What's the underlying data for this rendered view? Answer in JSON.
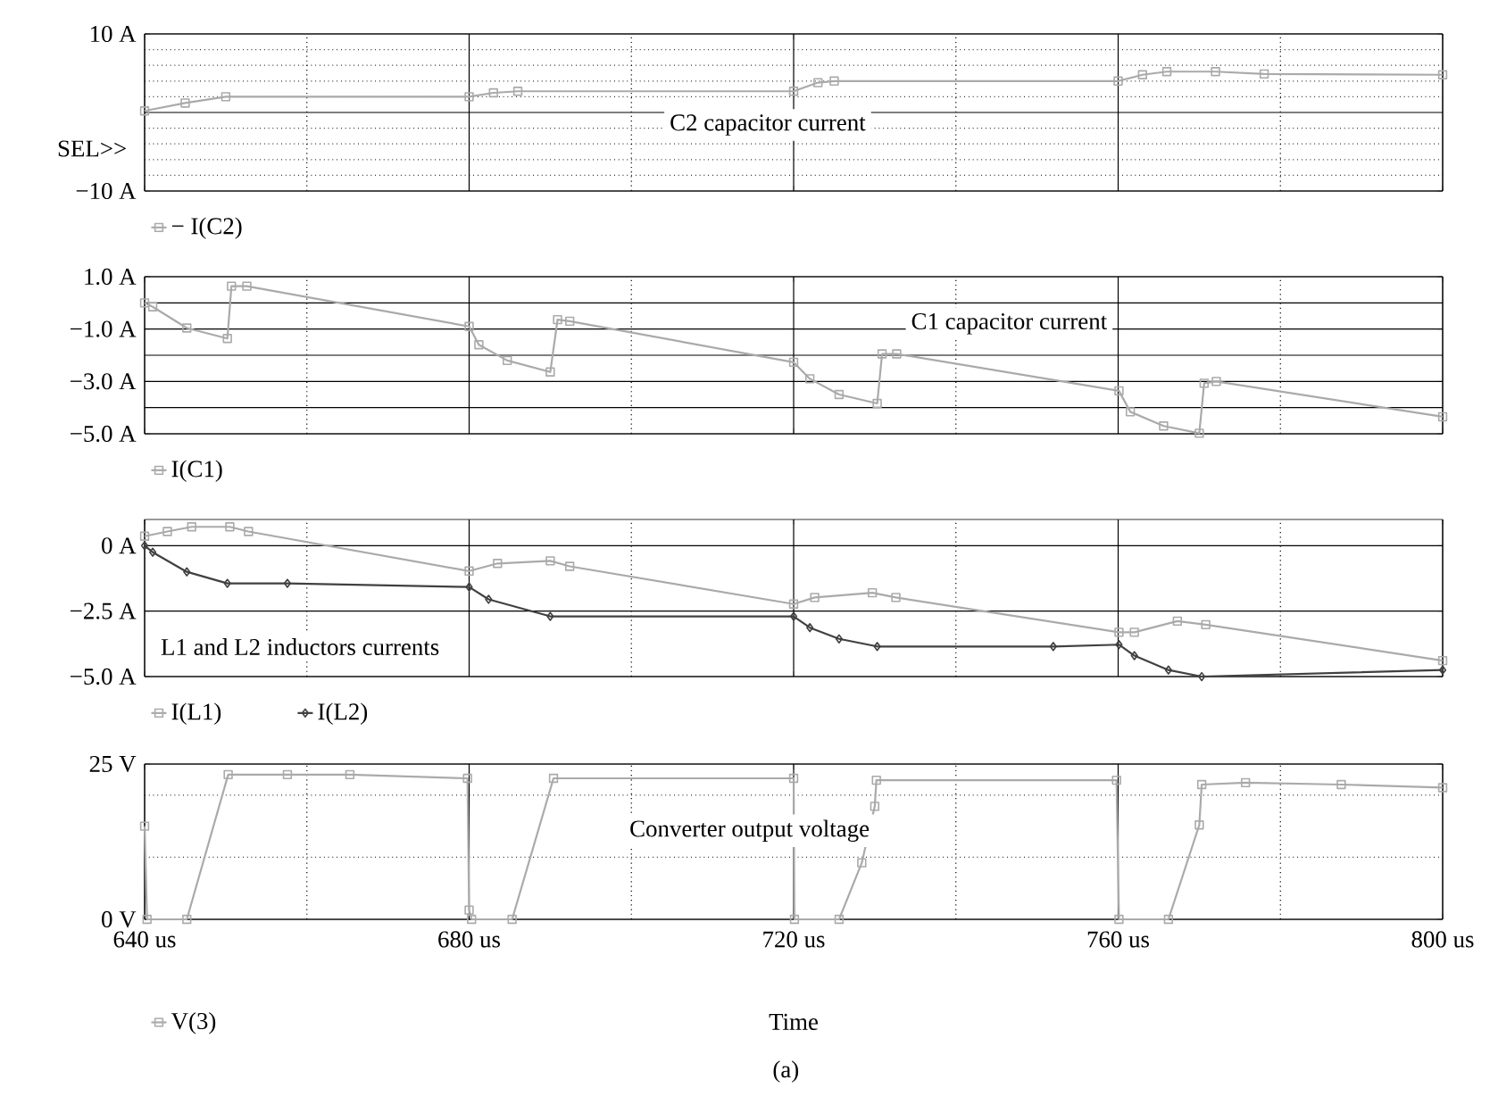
{
  "chart_data": [
    {
      "type": "line",
      "xlim": [
        640,
        800
      ],
      "xticks": [
        {
          "value": 640,
          "label": null
        },
        {
          "value": 660,
          "label": null
        },
        {
          "value": 680,
          "label": null
        },
        {
          "value": 700,
          "label": null
        },
        {
          "value": 720,
          "label": null
        },
        {
          "value": 740,
          "label": null
        },
        {
          "value": 760,
          "label": null
        },
        {
          "value": 780,
          "label": null
        },
        {
          "value": 800,
          "label": null
        }
      ],
      "ylim": [
        -10,
        10
      ],
      "yticks": [
        {
          "value": -10,
          "label": "−10 A"
        },
        {
          "value": -8,
          "label": null
        },
        {
          "value": -6,
          "label": null
        },
        {
          "value": -4,
          "label": null
        },
        {
          "value": -2,
          "label": null
        },
        {
          "value": 2,
          "label": null
        },
        {
          "value": 4,
          "label": null
        },
        {
          "value": 6,
          "label": null
        },
        {
          "value": 8,
          "label": null
        },
        {
          "value": 10,
          "label": "10 A"
        }
      ],
      "tick_labels": "y",
      "grid": true,
      "legend": "bottom left",
      "marker": "square",
      "ref_lines": [
        {
          "axis": "y",
          "value": 0
        }
      ],
      "annotations": [
        "C2 capacitor current",
        "SEL>>"
      ],
      "series": [
        {
          "name": "− I(C2)",
          "color": "#aaaaaa",
          "x": [
            640,
            645,
            650,
            680,
            683,
            686,
            720,
            723,
            725,
            760,
            763,
            766,
            772,
            778,
            800
          ],
          "values": [
            0.2,
            1.2,
            2,
            2,
            2.5,
            2.7,
            2.7,
            3.8,
            4,
            4,
            4.8,
            5.2,
            5.2,
            4.9,
            4.8
          ]
        }
      ]
    },
    {
      "type": "line",
      "xlim": [
        640,
        800
      ],
      "xticks": [
        {
          "value": 640,
          "label": null
        },
        {
          "value": 660,
          "label": null
        },
        {
          "value": 680,
          "label": null
        },
        {
          "value": 700,
          "label": null
        },
        {
          "value": 720,
          "label": null
        },
        {
          "value": 740,
          "label": null
        },
        {
          "value": 760,
          "label": null
        },
        {
          "value": 780,
          "label": null
        },
        {
          "value": 800,
          "label": null
        }
      ],
      "ylim": [
        -5,
        1
      ],
      "yticks": [
        {
          "value": 1,
          "label": "1.0 A"
        },
        {
          "value": 0,
          "label": null
        },
        {
          "value": -1,
          "label": "−1.0 A"
        },
        {
          "value": -2,
          "label": null
        },
        {
          "value": -3,
          "label": "−3.0 A"
        },
        {
          "value": -4,
          "label": null
        },
        {
          "value": -5,
          "label": "−5.0 A"
        }
      ],
      "tick_labels": "y",
      "grid": true,
      "legend": "bottom left",
      "marker": "square",
      "annotations": [
        "C1 capacitor current"
      ],
      "series": [
        {
          "name": "I(C1)",
          "color": "#aaaaaa",
          "x": [
            640,
            641,
            645.2,
            650.2,
            650.7,
            652.6,
            680,
            681.2,
            684.7,
            690,
            690.9,
            692.4,
            720,
            722,
            725.6,
            730.3,
            730.9,
            732.7,
            760.1,
            761.5,
            765.6,
            770,
            770.6,
            772.1,
            800
          ],
          "values": [
            0,
            -0.15,
            -0.96,
            -1.36,
            0.64,
            0.64,
            -0.9,
            -1.6,
            -2.2,
            -2.64,
            -0.64,
            -0.7,
            -2.27,
            -2.9,
            -3.5,
            -3.84,
            -1.95,
            -1.95,
            -3.36,
            -4.16,
            -4.7,
            -4.98,
            -3.07,
            -3,
            -4.35
          ]
        }
      ]
    },
    {
      "type": "line",
      "xlim": [
        640,
        800
      ],
      "xticks": [
        {
          "value": 640,
          "label": null
        },
        {
          "value": 660,
          "label": null
        },
        {
          "value": 680,
          "label": null
        },
        {
          "value": 700,
          "label": null
        },
        {
          "value": 720,
          "label": null
        },
        {
          "value": 740,
          "label": null
        },
        {
          "value": 760,
          "label": null
        },
        {
          "value": 780,
          "label": null
        },
        {
          "value": 800,
          "label": null
        }
      ],
      "ylim": [
        -5,
        1
      ],
      "yticks": [
        {
          "value": 0,
          "label": "0 A"
        },
        {
          "value": -2.5,
          "label": "−2.5 A"
        },
        {
          "value": -5,
          "label": "−5.0 A"
        }
      ],
      "tick_labels": "y",
      "grid": true,
      "legend": "bottom left",
      "annotations": [
        "L1 and L2 inductors currents"
      ],
      "series": [
        {
          "name": "I(L1)",
          "color": "#aaaaaa",
          "marker": "square",
          "x": [
            640,
            642.8,
            645.8,
            650.5,
            652.8,
            680,
            683.5,
            690,
            692.4,
            720,
            722.6,
            729.7,
            732.6,
            760.1,
            762,
            767.3,
            770.8,
            800
          ],
          "values": [
            0.36,
            0.54,
            0.72,
            0.72,
            0.54,
            -0.97,
            -0.68,
            -0.58,
            -0.79,
            -2.23,
            -1.98,
            -1.8,
            -1.98,
            -3.31,
            -3.31,
            -2.88,
            -3.02,
            -4.39
          ]
        },
        {
          "name": "I(L2)",
          "color": "#404040",
          "marker": "diamond",
          "x": [
            640,
            641,
            645.2,
            650.2,
            657.6,
            680,
            682.4,
            690,
            720,
            722,
            725.6,
            730.3,
            752,
            760.1,
            762,
            766.2,
            770.3,
            800
          ],
          "values": [
            0,
            -0.25,
            -1,
            -1.44,
            -1.44,
            -1.58,
            -2.05,
            -2.7,
            -2.7,
            -3.13,
            -3.56,
            -3.85,
            -3.85,
            -3.78,
            -4.2,
            -4.75,
            -5,
            -4.75
          ]
        }
      ]
    },
    {
      "type": "line",
      "xlim": [
        640,
        800
      ],
      "xticks": [
        {
          "value": 640,
          "label": "640 us"
        },
        {
          "value": 660,
          "label": null
        },
        {
          "value": 680,
          "label": "680 us"
        },
        {
          "value": 700,
          "label": null
        },
        {
          "value": 720,
          "label": "720 us"
        },
        {
          "value": 740,
          "label": null
        },
        {
          "value": 760,
          "label": "760 us"
        },
        {
          "value": 780,
          "label": null
        },
        {
          "value": 800,
          "label": "800 us"
        }
      ],
      "ylim": [
        0,
        25
      ],
      "yticks": [
        {
          "value": 0,
          "label": "0 V"
        },
        {
          "value": 10,
          "label": null
        },
        {
          "value": 20,
          "label": null
        },
        {
          "value": 25,
          "label": "25 V"
        }
      ],
      "xlabel": "Time",
      "grid": true,
      "legend": "bottom left",
      "marker": "square",
      "annotations": [
        "Converter output voltage",
        "(a)"
      ],
      "series": [
        {
          "name": "V(3)",
          "color": "#aaaaaa",
          "x": [
            640,
            640.3,
            645.2,
            650.3,
            657.6,
            665.3,
            679.8,
            680,
            680.3,
            685.3,
            690.4,
            720,
            720.1,
            725.6,
            728.4,
            730,
            730.2,
            759.8,
            760.1,
            766.2,
            770,
            770.3,
            775.7,
            787.5,
            800
          ],
          "values": [
            15,
            0,
            0,
            23.3,
            23.3,
            23.3,
            22.7,
            1.5,
            0,
            0,
            22.7,
            22.7,
            0,
            0,
            9.1,
            18.2,
            22.4,
            22.4,
            0,
            0,
            15.2,
            21.7,
            22,
            21.7,
            21.2
          ]
        }
      ]
    }
  ]
}
